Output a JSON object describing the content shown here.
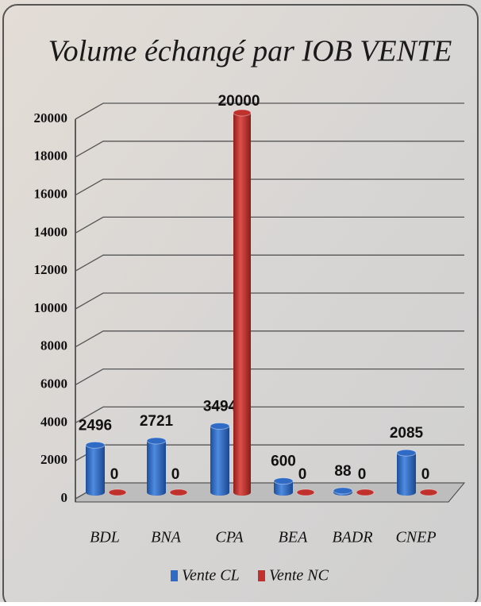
{
  "chart_data": {
    "type": "bar3d",
    "title": "Volume échangé par IOB VENTE",
    "categories": [
      "BDL",
      "BNA",
      "CPA",
      "BEA",
      "BADR",
      "CNEP"
    ],
    "series": [
      {
        "name": "Vente CL",
        "color": "#2f6bc4",
        "values": [
          2496,
          2721,
          3494,
          600,
          88,
          2085
        ]
      },
      {
        "name": "Vente NC",
        "color": "#c0302c",
        "values": [
          0,
          0,
          20000,
          0,
          0,
          0
        ]
      }
    ],
    "ylim": [
      0,
      20000
    ],
    "yticks": [
      0,
      2000,
      4000,
      6000,
      8000,
      10000,
      12000,
      14000,
      16000,
      18000,
      20000
    ],
    "grid": true,
    "legend": "bottom"
  }
}
